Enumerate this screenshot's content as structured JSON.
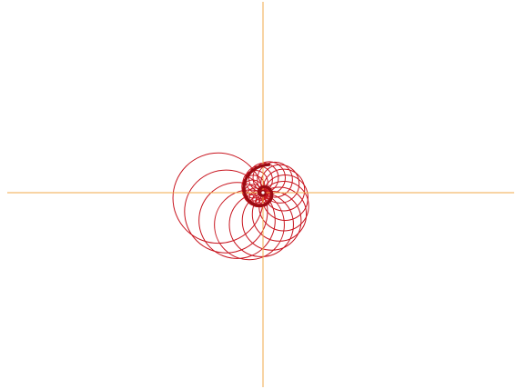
{
  "figure": {
    "kind": "spiral-circle-family",
    "circle_count": 44,
    "spiral_turns": 1.25,
    "has_center_dot": true
  },
  "axes": {
    "show_horizontal": true,
    "show_vertical": true
  },
  "colors": {
    "background": "#ffffff",
    "circle_stroke": "#c8141e",
    "envelope_stroke": "#9a0a12",
    "axis_stroke": "#f0a848",
    "center_dot": "#ffffff"
  }
}
